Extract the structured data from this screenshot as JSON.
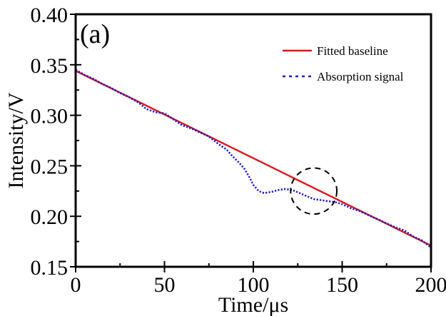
{
  "chart_data": {
    "type": "line",
    "panel_label": "(a)",
    "title": "",
    "xlabel": "Time/μs",
    "ylabel": "Intensity/V",
    "xlim": [
      0,
      200
    ],
    "ylim": [
      0.15,
      0.4
    ],
    "xticks": [
      0,
      50,
      100,
      150,
      200
    ],
    "xtick_labels": [
      "0",
      "50",
      "100",
      "150",
      "200"
    ],
    "yticks": [
      0.15,
      0.2,
      0.25,
      0.3,
      0.35,
      0.4
    ],
    "ytick_labels": [
      "0.15",
      "0.20",
      "0.25",
      "0.30",
      "0.35",
      "0.40"
    ],
    "x_minor_step": 25,
    "y_minor_step": 0.025,
    "grid": false,
    "legend_position": "top-right",
    "series": [
      {
        "name": "Fitted baseline",
        "color": "#e0141b",
        "style": "solid",
        "x": [
          0,
          200
        ],
        "y": [
          0.344,
          0.171
        ]
      },
      {
        "name": "Absorption signal",
        "color": "#1a1ad6",
        "style": "dotted",
        "x": [
          0,
          5,
          10,
          15,
          20,
          25,
          30,
          35,
          40,
          45,
          50,
          55,
          60,
          65,
          70,
          75,
          80,
          85,
          88,
          92,
          95,
          98,
          100,
          103,
          106,
          110,
          114,
          118,
          122,
          126,
          130,
          134,
          138,
          142,
          146,
          150,
          155,
          160,
          165,
          170,
          175,
          180,
          185,
          190,
          195,
          200
        ],
        "y": [
          0.345,
          0.34,
          0.336,
          0.331,
          0.327,
          0.322,
          0.318,
          0.313,
          0.306,
          0.303,
          0.302,
          0.296,
          0.29,
          0.287,
          0.283,
          0.279,
          0.272,
          0.266,
          0.26,
          0.253,
          0.247,
          0.238,
          0.231,
          0.225,
          0.223,
          0.224,
          0.226,
          0.227,
          0.226,
          0.223,
          0.22,
          0.217,
          0.216,
          0.215,
          0.214,
          0.212,
          0.208,
          0.205,
          0.201,
          0.197,
          0.193,
          0.189,
          0.186,
          0.18,
          0.176,
          0.169
        ]
      }
    ],
    "annotations": [
      {
        "type": "dashed-circle",
        "x": 134,
        "y": 0.225,
        "radius_x_units": 13,
        "color": "#000000"
      }
    ]
  }
}
